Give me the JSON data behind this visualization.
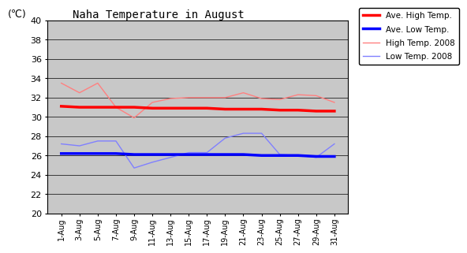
{
  "title": "Naha Temperature in August",
  "ylabel": "(℃)",
  "ylim": [
    20,
    40
  ],
  "yticks": [
    20,
    22,
    24,
    26,
    28,
    30,
    32,
    34,
    36,
    38,
    40
  ],
  "x_labels": [
    "1-Aug",
    "3-Aug",
    "5-Aug",
    "7-Aug",
    "9-Aug",
    "11-Aug",
    "13-Aug",
    "15-Aug",
    "17-Aug",
    "19-Aug",
    "21-Aug",
    "23-Aug",
    "25-Aug",
    "27-Aug",
    "29-Aug",
    "31-Aug"
  ],
  "ave_high": [
    31.1,
    31.0,
    31.0,
    31.0,
    31.0,
    30.9,
    30.9,
    30.9,
    30.9,
    30.8,
    30.8,
    30.8,
    30.7,
    30.7,
    30.6,
    30.6
  ],
  "ave_low": [
    26.2,
    26.2,
    26.2,
    26.2,
    26.1,
    26.1,
    26.1,
    26.1,
    26.1,
    26.1,
    26.1,
    26.0,
    26.0,
    26.0,
    25.9,
    25.9
  ],
  "high_2008": [
    33.5,
    32.5,
    33.5,
    31.0,
    29.9,
    31.5,
    31.9,
    32.0,
    32.0,
    32.0,
    32.5,
    31.9,
    31.8,
    32.3,
    32.2,
    31.5
  ],
  "low_2008": [
    27.2,
    27.0,
    27.5,
    27.5,
    24.7,
    25.3,
    25.8,
    26.3,
    26.3,
    27.8,
    28.3,
    28.3,
    26.1,
    26.0,
    25.8,
    27.2
  ],
  "color_ave_high": "#FF0000",
  "color_ave_low": "#0000FF",
  "color_high_2008": "#FF8080",
  "color_low_2008": "#8080FF",
  "background_color": "#C8C8C8",
  "legend_labels": [
    "Ave. High Temp.",
    "Ave. Low Temp.",
    "High Temp. 2008",
    "Low Temp. 2008"
  ]
}
